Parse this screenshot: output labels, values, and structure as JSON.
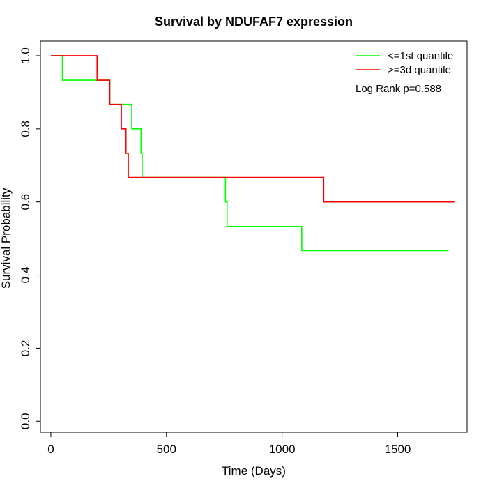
{
  "chart_data": {
    "type": "line",
    "title": "Survival by NDUFAF7 expression",
    "xlabel": "Time (Days)",
    "ylabel": "Survival Probability",
    "xlim": [
      -45,
      1800
    ],
    "ylim": [
      -0.03,
      1.04
    ],
    "xticks": [
      0,
      500,
      1000,
      1500
    ],
    "yticks": [
      0.0,
      0.2,
      0.4,
      0.6,
      0.8,
      1.0
    ],
    "xtick_labels": [
      "0",
      "500",
      "1000",
      "1500"
    ],
    "ytick_labels": [
      "0.0",
      "0.2",
      "0.4",
      "0.6",
      "0.8",
      "1.0"
    ],
    "grid": false,
    "legend_position": "top-right",
    "annotation": "Log Rank p=0.588",
    "series": [
      {
        "name": "<=1st quantile",
        "color": "#00ff00",
        "step": true,
        "x": [
          0,
          50,
          200,
          255,
          350,
          390,
          395,
          755,
          762,
          1085,
          1720
        ],
        "y": [
          1.0,
          0.933,
          0.933,
          0.867,
          0.8,
          0.733,
          0.667,
          0.6,
          0.533,
          0.467,
          0.467
        ]
      },
      {
        "name": ">=3d quantile",
        "color": "#ff0000",
        "step": true,
        "x": [
          0,
          200,
          255,
          305,
          325,
          335,
          340,
          1180,
          1745
        ],
        "y": [
          1.0,
          0.933,
          0.867,
          0.8,
          0.733,
          0.667,
          0.667,
          0.6,
          0.6
        ]
      }
    ]
  }
}
